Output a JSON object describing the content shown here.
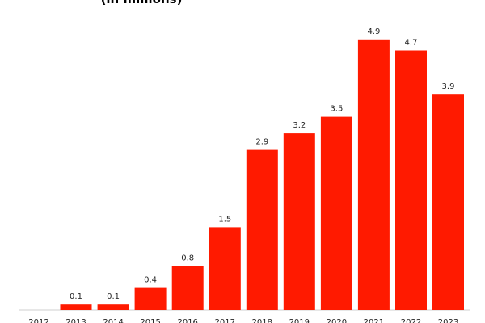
{
  "chart_data": {
    "type": "bar",
    "subtitle": "(in millions)",
    "categories": [
      "2012",
      "2013",
      "2014",
      "2015",
      "2016",
      "2017",
      "2018",
      "2019",
      "2020",
      "2021",
      "2022",
      "2023"
    ],
    "values": [
      0,
      0.1,
      0.1,
      0.4,
      0.8,
      1.5,
      2.9,
      3.2,
      3.5,
      4.9,
      4.7,
      3.9
    ],
    "value_labels": [
      "",
      "0.1",
      "0.1",
      "0.4",
      "0.8",
      "1.5",
      "2.9",
      "3.2",
      "3.5",
      "4.9",
      "4.7",
      "3.9"
    ],
    "ylim": [
      0,
      5.0
    ],
    "bar_color": "#ff1a00",
    "grid": false,
    "legend": "none"
  }
}
